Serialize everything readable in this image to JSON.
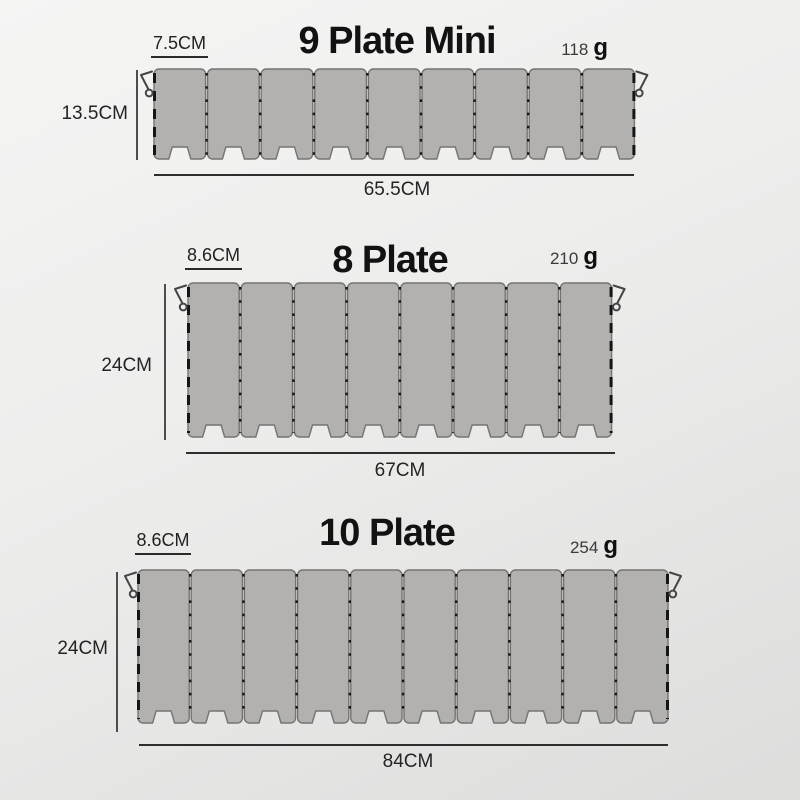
{
  "image_type": "product-dimensions-diagram",
  "subject": "folding camp stove windscreen size comparison",
  "colors": {
    "plate_fill": "#b2b1b0",
    "plate_border": "#767472",
    "hinge": "#161616",
    "hook": "#454545",
    "dim_line": "#2e2e2e",
    "text": "#242424",
    "title": "#121212"
  },
  "products": [
    {
      "title": "9 Plate Mini",
      "plates": 9,
      "plate_width_label": "7.5CM",
      "height_label": "13.5CM",
      "length_label": "65.5CM",
      "weight_value": "118",
      "weight_unit": "g"
    },
    {
      "title": "8 Plate",
      "plates": 8,
      "plate_width_label": "8.6CM",
      "height_label": "24CM",
      "length_label": "67CM",
      "weight_value": "210",
      "weight_unit": "g"
    },
    {
      "title": "10 Plate",
      "plates": 10,
      "plate_width_label": "8.6CM",
      "height_label": "24CM",
      "length_label": "84CM",
      "weight_value": "254",
      "weight_unit": "g"
    }
  ]
}
